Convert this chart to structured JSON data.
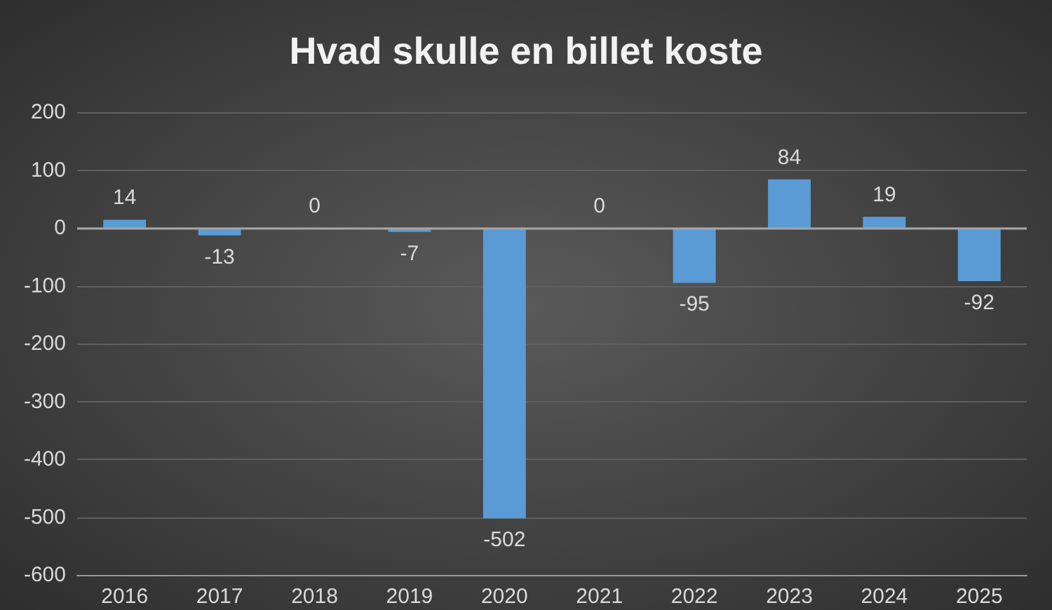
{
  "chart_data": {
    "type": "bar",
    "title": "Hvad skulle en billet koste",
    "categories": [
      "2016",
      "2017",
      "2018",
      "2019",
      "2020",
      "2021",
      "2022",
      "2023",
      "2024",
      "2025"
    ],
    "values": [
      14,
      -13,
      0,
      -7,
      -502,
      0,
      -95,
      84,
      19,
      -92
    ],
    "color": "#5b9bd5",
    "ylim": [
      -600,
      200
    ],
    "yticks": [
      -600,
      -500,
      -400,
      -300,
      -200,
      -100,
      0,
      100,
      200
    ],
    "grid": "y",
    "data_labels": true
  }
}
